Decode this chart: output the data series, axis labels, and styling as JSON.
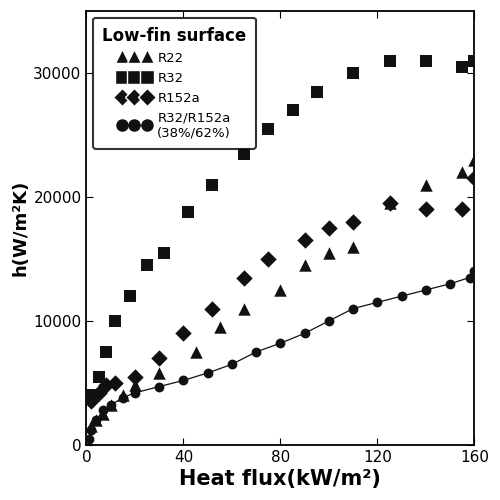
{
  "title": "Low-fin surface",
  "xlabel": "Heat flux(kW/m²)",
  "ylabel": "h(W/m²K)",
  "xlim": [
    0,
    160
  ],
  "ylim": [
    0,
    35000
  ],
  "xticks": [
    0,
    40,
    80,
    120,
    160
  ],
  "yticks": [
    0,
    10000,
    20000,
    30000
  ],
  "R22_x": [
    2,
    4,
    7,
    10,
    15,
    20,
    30,
    45,
    55,
    65,
    80,
    90,
    100,
    110,
    125,
    140,
    155,
    160
  ],
  "R22_y": [
    1500,
    2000,
    2500,
    3200,
    4000,
    4800,
    5800,
    7500,
    9500,
    11000,
    12500,
    14500,
    15500,
    16000,
    19500,
    21000,
    22000,
    23000
  ],
  "R32_x": [
    2,
    5,
    8,
    12,
    18,
    25,
    32,
    42,
    52,
    65,
    75,
    85,
    95,
    110,
    125,
    140,
    155,
    160
  ],
  "R32_y": [
    4000,
    5500,
    7500,
    10000,
    12000,
    14500,
    15500,
    18800,
    21000,
    23500,
    25500,
    27000,
    28500,
    30000,
    31000,
    31000,
    30500,
    31000
  ],
  "R152a_x": [
    2,
    5,
    8,
    12,
    20,
    30,
    40,
    52,
    65,
    75,
    90,
    100,
    110,
    125,
    140,
    155,
    160
  ],
  "R152a_y": [
    3500,
    4200,
    4800,
    5000,
    5500,
    7000,
    9000,
    11000,
    13500,
    15000,
    16500,
    17500,
    18000,
    19500,
    19000,
    19000,
    21500
  ],
  "mix_x": [
    1,
    2,
    4,
    7,
    10,
    15,
    20,
    30,
    40,
    50,
    60,
    70,
    80,
    90,
    100,
    110,
    120,
    130,
    140,
    150,
    158,
    160
  ],
  "mix_y": [
    500,
    1200,
    2000,
    2800,
    3200,
    3800,
    4200,
    4700,
    5200,
    5800,
    6500,
    7500,
    8200,
    9000,
    10000,
    11000,
    11500,
    12000,
    12500,
    13000,
    13500,
    14000
  ],
  "bg_color": "#ffffff",
  "marker_color": "#111111",
  "line_color": "#111111"
}
